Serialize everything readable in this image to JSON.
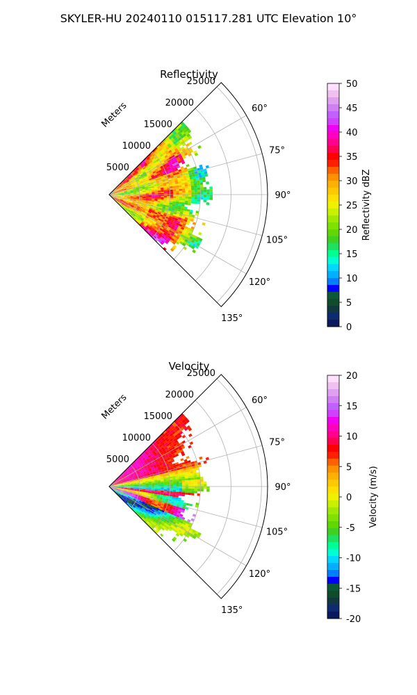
{
  "figure": {
    "title": "SKYLER-HU  20240110  015117.281 UTC Elevation 10°"
  },
  "chart_data": [
    {
      "type": "polar-sector",
      "title": "Reflectivity",
      "radial_label": "Meters",
      "r_ticks": [
        5000,
        10000,
        15000,
        20000,
        25000
      ],
      "theta_ticks": [
        "60°",
        "75°",
        "90°",
        "105°",
        "120°",
        "135°"
      ],
      "theta_range_deg": [
        45,
        135
      ],
      "data_range_m": 17000,
      "colorbar": {
        "label": "Reflectivity dBZ",
        "range": [
          0,
          50
        ],
        "ticks": [
          0,
          5,
          10,
          15,
          20,
          25,
          30,
          35,
          40,
          45,
          50
        ],
        "colors": [
          "#0b1a5c",
          "#0d2b6e",
          "#12383f",
          "#0f4c2c",
          "#0a5a3a",
          "#0000ff",
          "#0080ff",
          "#00b0ff",
          "#00d8ff",
          "#00ffd0",
          "#00ff90",
          "#20e060",
          "#40d020",
          "#60d800",
          "#80e000",
          "#a0e800",
          "#c8f000",
          "#f0f000",
          "#ffe000",
          "#ffc800",
          "#ffb000",
          "#ff9000",
          "#ff6000",
          "#ff2000",
          "#ff0000",
          "#ff0050",
          "#ff0090",
          "#ff00c0",
          "#f000f0",
          "#d040ff",
          "#c060ff",
          "#d080f0",
          "#e0a0f0",
          "#f0c0f0",
          "#ffe0ff"
        ]
      }
    },
    {
      "type": "polar-sector",
      "title": "Velocity",
      "radial_label": "Meters",
      "r_ticks": [
        5000,
        10000,
        15000,
        20000,
        25000
      ],
      "theta_ticks": [
        "60°",
        "75°",
        "90°",
        "105°",
        "120°",
        "135°"
      ],
      "theta_range_deg": [
        45,
        135
      ],
      "data_range_m": 17000,
      "colorbar": {
        "label": "Velocity (m/s)",
        "range": [
          -20,
          20
        ],
        "ticks": [
          -20,
          -15,
          -10,
          -5,
          0,
          5,
          10,
          15,
          20
        ],
        "colors": [
          "#0b1a5c",
          "#0d2b6e",
          "#12383f",
          "#0f4c2c",
          "#0a5a3a",
          "#0000ff",
          "#0080ff",
          "#00b0ff",
          "#00d8ff",
          "#00ffd0",
          "#00ff90",
          "#20e060",
          "#40d020",
          "#60d800",
          "#80e000",
          "#a0e800",
          "#c8f000",
          "#f0f000",
          "#ffe000",
          "#ffc800",
          "#ffb000",
          "#ff9000",
          "#ff6000",
          "#ff2000",
          "#ff0000",
          "#ff0050",
          "#ff0090",
          "#ff00c0",
          "#f000f0",
          "#d040ff",
          "#c060ff",
          "#d080f0",
          "#e0a0f0",
          "#f0c0f0",
          "#ffe0ff"
        ]
      }
    }
  ]
}
